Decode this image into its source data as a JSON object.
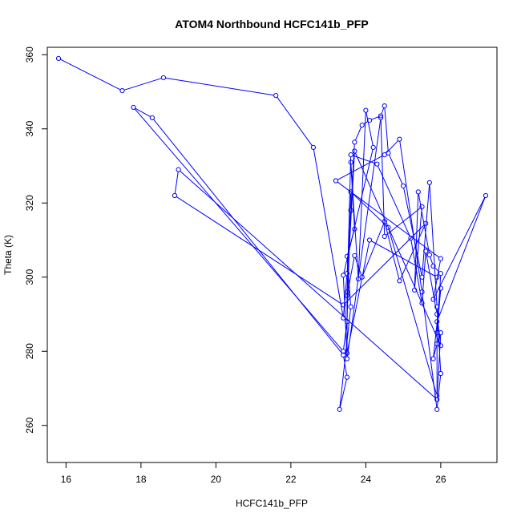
{
  "chart_data": {
    "type": "line",
    "title": "ATOM4 Northbound HCFC141b_PFP",
    "xlabel": "HCFC141b_PFP",
    "ylabel": "Theta (K)",
    "xlim": [
      15.5,
      27.5
    ],
    "ylim": [
      250,
      362
    ],
    "xticks": [
      16,
      18,
      20,
      22,
      24,
      26
    ],
    "yticks": [
      260,
      280,
      300,
      320,
      340,
      360
    ],
    "grid": false,
    "series": [
      {
        "color": "#0000ff",
        "marker": "open-circle",
        "points": [
          [
            15.8,
            359.0
          ],
          [
            17.5,
            350.3
          ],
          [
            18.6,
            353.8
          ],
          [
            21.6,
            349.0
          ],
          [
            22.6,
            335.0
          ],
          [
            23.4,
            289.0
          ],
          [
            23.5,
            301.0
          ],
          [
            23.6,
            318.0
          ],
          [
            23.7,
            336.4
          ],
          [
            23.9,
            341.0
          ],
          [
            24.1,
            342.3
          ],
          [
            24.4,
            343.5
          ],
          [
            24.5,
            346.2
          ],
          [
            24.6,
            333.5
          ],
          [
            25.0,
            324.6
          ],
          [
            25.5,
            300.0
          ],
          [
            25.7,
            325.5
          ],
          [
            25.9,
            292.0
          ],
          [
            26.0,
            274.0
          ],
          [
            25.9,
            264.3
          ],
          [
            25.5,
            296.0
          ],
          [
            24.9,
            337.2
          ],
          [
            24.5,
            333.0
          ],
          [
            23.2,
            326.0
          ],
          [
            26.0,
            305.0
          ],
          [
            25.8,
            294.0
          ],
          [
            27.2,
            322.0
          ],
          [
            25.9,
            288.0
          ],
          [
            25.9,
            268.0
          ],
          [
            24.6,
            313.4
          ],
          [
            23.6,
            323.0
          ],
          [
            23.5,
            288.0
          ],
          [
            23.4,
            280.0
          ],
          [
            17.8,
            345.8
          ],
          [
            18.3,
            343.0
          ],
          [
            23.4,
            279.0
          ],
          [
            23.5,
            273.0
          ],
          [
            23.3,
            264.3
          ],
          [
            23.6,
            292.0
          ],
          [
            23.5,
            305.6
          ],
          [
            23.7,
            313.0
          ],
          [
            23.6,
            331.0
          ],
          [
            23.8,
            299.5
          ],
          [
            24.0,
            345.0
          ],
          [
            24.2,
            335.0
          ],
          [
            23.4,
            300.5
          ],
          [
            23.5,
            278.0
          ],
          [
            24.4,
            343.0
          ],
          [
            24.5,
            311.0
          ],
          [
            25.5,
            319.0
          ],
          [
            25.3,
            296.5
          ],
          [
            25.4,
            323.0
          ],
          [
            25.7,
            306.0
          ],
          [
            25.8,
            303.0
          ],
          [
            26.0,
            301.0
          ],
          [
            25.9,
            285.0
          ],
          [
            26.0,
            297.0
          ],
          [
            25.8,
            278.0
          ],
          [
            25.9,
            282.0
          ],
          [
            26.0,
            285.0
          ],
          [
            25.9,
            267.0
          ],
          [
            19.0,
            329.0
          ],
          [
            18.9,
            322.0
          ],
          [
            23.4,
            292.5
          ],
          [
            25.6,
            314.5
          ],
          [
            24.9,
            299.0
          ],
          [
            24.5,
            315.0
          ],
          [
            23.9,
            300.0
          ],
          [
            23.7,
            305.8
          ],
          [
            23.5,
            295.0
          ],
          [
            23.6,
            333.0
          ],
          [
            24.3,
            330.5
          ],
          [
            25.2,
            310.5
          ],
          [
            25.5,
            293.0
          ],
          [
            25.6,
            307.0
          ],
          [
            25.9,
            290.0
          ],
          [
            26.0,
            281.5
          ],
          [
            23.7,
            334.0
          ],
          [
            23.5,
            296.0
          ],
          [
            23.5,
            279.5
          ],
          [
            24.1,
            310.0
          ],
          [
            25.9,
            300.0
          ]
        ]
      }
    ]
  }
}
